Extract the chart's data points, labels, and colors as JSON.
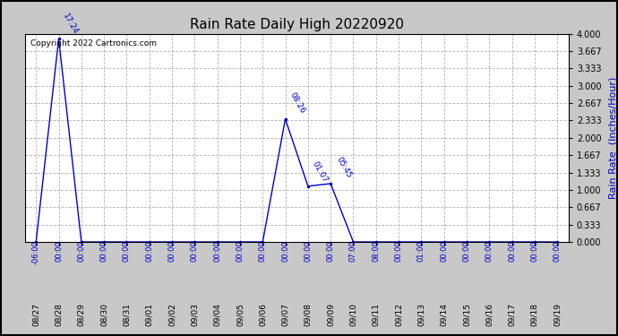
{
  "title": "Rain Rate Daily High 20220920",
  "ylabel": "Rain Rate  (Inches/Hour)",
  "copyright_text": "Copyright 2022 Cartronics.com",
  "background_color": "#c8c8c8",
  "plot_bg_color": "#ffffff",
  "line_color": "#0000cc",
  "label_color": "#0000cc",
  "grid_color": "#aaaaaa",
  "ylim": [
    0.0,
    4.0
  ],
  "yticks": [
    0.0,
    0.333,
    0.667,
    1.0,
    1.333,
    1.667,
    2.0,
    2.333,
    2.667,
    3.0,
    3.333,
    3.667,
    4.0
  ],
  "ytick_labels": [
    "0.000",
    "0.333",
    "0.667",
    "1.000",
    "1.333",
    "1.667",
    "2.000",
    "2.333",
    "2.667",
    "3.000",
    "3.333",
    "3.667",
    "4.000"
  ],
  "dates": [
    "08/27",
    "08/28",
    "08/29",
    "08/30",
    "08/31",
    "09/01",
    "09/02",
    "09/03",
    "09/04",
    "09/05",
    "09/06",
    "09/07",
    "09/08",
    "09/09",
    "09/10",
    "09/11",
    "09/12",
    "09/13",
    "09/14",
    "09/15",
    "09/16",
    "09/17",
    "09/18",
    "09/19"
  ],
  "rain_values": [
    0.0,
    3.9,
    0.0,
    0.0,
    0.0,
    0.0,
    0.0,
    0.0,
    0.0,
    0.0,
    0.0,
    2.36,
    1.07,
    1.12,
    0.0,
    0.0,
    0.0,
    0.0,
    0.0,
    0.0,
    0.0,
    0.0,
    0.0,
    0.0
  ],
  "point_labels": {
    "1": "17:24",
    "11": "08:26",
    "12": "01:07",
    "13": "05:45"
  },
  "xtick_times": [
    "-06:00",
    "00:00",
    "00:00",
    "00:00",
    "00:00",
    "00:00",
    "00:00",
    "00:00",
    "00:00",
    "00:00",
    "00:00",
    "00:00",
    "00:00",
    "00:00",
    "07:00",
    "08:00",
    "00:00",
    "01:00",
    "00:00",
    "00:00",
    "00:00",
    "00:00",
    "00:00",
    "00:00"
  ]
}
